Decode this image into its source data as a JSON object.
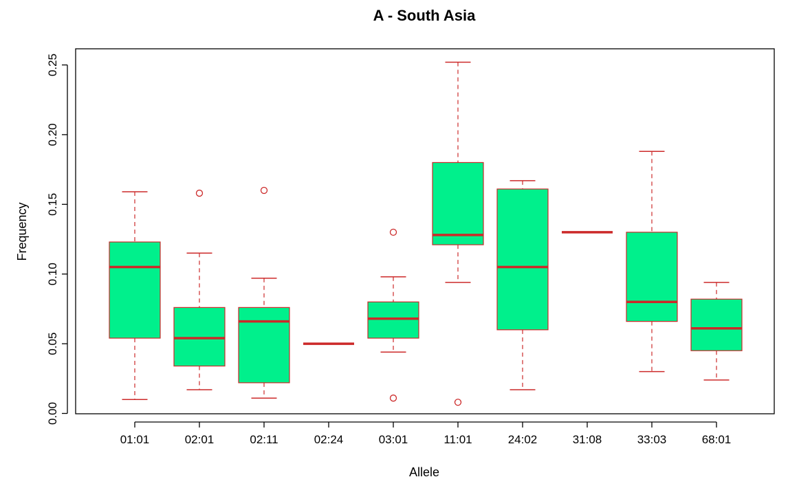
{
  "chart_data": {
    "type": "box",
    "title": "A - South Asia",
    "xlabel": "Allele",
    "ylabel": "Frequency",
    "ylim": [
      0,
      0.25
    ],
    "yticks": [
      "0.00",
      "0.05",
      "0.10",
      "0.15",
      "0.20",
      "0.25"
    ],
    "grid": false,
    "colors": {
      "box_fill": "#00f08c",
      "line": "#cc2929",
      "frame": "#000000"
    },
    "categories": [
      "01:01",
      "02:01",
      "02:11",
      "02:24",
      "03:01",
      "11:01",
      "24:02",
      "31:08",
      "33:03",
      "68:01"
    ],
    "boxes": [
      {
        "whisker_low": 0.01,
        "q1": 0.054,
        "median": 0.105,
        "q3": 0.123,
        "whisker_high": 0.159,
        "outliers": []
      },
      {
        "whisker_low": 0.017,
        "q1": 0.034,
        "median": 0.054,
        "q3": 0.076,
        "whisker_high": 0.115,
        "outliers": [
          0.158
        ]
      },
      {
        "whisker_low": 0.011,
        "q1": 0.022,
        "median": 0.066,
        "q3": 0.076,
        "whisker_high": 0.097,
        "outliers": [
          0.16
        ]
      },
      {
        "whisker_low": 0.05,
        "q1": 0.05,
        "median": 0.05,
        "q3": 0.05,
        "whisker_high": 0.05,
        "outliers": []
      },
      {
        "whisker_low": 0.044,
        "q1": 0.054,
        "median": 0.068,
        "q3": 0.08,
        "whisker_high": 0.098,
        "outliers": [
          0.011,
          0.13
        ]
      },
      {
        "whisker_low": 0.094,
        "q1": 0.121,
        "median": 0.128,
        "q3": 0.18,
        "whisker_high": 0.252,
        "outliers": [
          0.008
        ]
      },
      {
        "whisker_low": 0.017,
        "q1": 0.06,
        "median": 0.105,
        "q3": 0.161,
        "whisker_high": 0.167,
        "outliers": []
      },
      {
        "whisker_low": 0.13,
        "q1": 0.13,
        "median": 0.13,
        "q3": 0.13,
        "whisker_high": 0.13,
        "outliers": []
      },
      {
        "whisker_low": 0.03,
        "q1": 0.066,
        "median": 0.08,
        "q3": 0.13,
        "whisker_high": 0.188,
        "outliers": []
      },
      {
        "whisker_low": 0.024,
        "q1": 0.045,
        "median": 0.061,
        "q3": 0.082,
        "whisker_high": 0.094,
        "outliers": []
      }
    ]
  }
}
